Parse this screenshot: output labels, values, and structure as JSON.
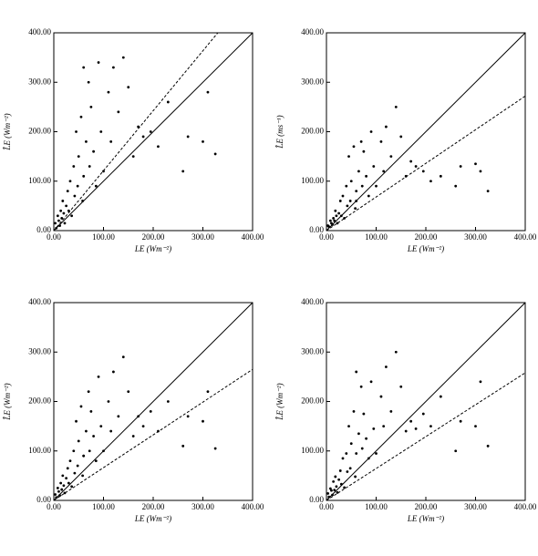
{
  "chart_data": [
    {
      "type": "scatter",
      "xlabel": "LE (Wm⁻²)",
      "ylabel": "L̂E (Wm⁻²)",
      "color": "#000000",
      "xlim": [
        0,
        400
      ],
      "ylim": [
        0,
        400
      ],
      "xticks": [
        {
          "value": 0,
          "label": "0.00"
        },
        {
          "value": 100,
          "label": "100.00"
        },
        {
          "value": 200,
          "label": "200.00"
        },
        {
          "value": 300,
          "label": "300.00"
        },
        {
          "value": 400,
          "label": "400.00"
        }
      ],
      "yticks": [
        {
          "value": 0,
          "label": "0.00"
        },
        {
          "value": 100,
          "label": "100.00"
        },
        {
          "value": 200,
          "label": "200.00"
        },
        {
          "value": 300,
          "label": "300.00"
        },
        {
          "value": 400,
          "label": "400.00"
        }
      ],
      "x": [
        3,
        5,
        8,
        10,
        12,
        14,
        16,
        18,
        20,
        22,
        25,
        28,
        30,
        33,
        36,
        40,
        42,
        45,
        48,
        50,
        55,
        58,
        60,
        65,
        70,
        72,
        75,
        80,
        85,
        90,
        95,
        100,
        110,
        115,
        120,
        130,
        140,
        150,
        160,
        170,
        180,
        195,
        210,
        230,
        260,
        270,
        300,
        310,
        325,
        60
      ],
      "values": [
        15,
        5,
        30,
        20,
        10,
        40,
        25,
        60,
        35,
        15,
        50,
        80,
        40,
        100,
        30,
        130,
        70,
        200,
        90,
        150,
        230,
        60,
        110,
        180,
        300,
        130,
        250,
        160,
        90,
        340,
        200,
        120,
        280,
        180,
        330,
        240,
        350,
        290,
        150,
        210,
        190,
        200,
        170,
        260,
        120,
        190,
        180,
        280,
        155,
        330
      ],
      "lines": [
        {
          "x": [
            0,
            400
          ],
          "values": [
            0,
            400
          ],
          "style": "solid"
        },
        {
          "x": [
            0,
            330
          ],
          "values": [
            0,
            400
          ],
          "style": "dashed"
        }
      ]
    },
    {
      "type": "scatter",
      "xlabel": "LE (Wm⁻²)",
      "ylabel": "L̂E (ms⁻¹)",
      "color": "#000000",
      "xlim": [
        0,
        400
      ],
      "ylim": [
        0,
        400
      ],
      "xticks": [
        {
          "value": 0,
          "label": "0.00"
        },
        {
          "value": 100,
          "label": "100.00"
        },
        {
          "value": 200,
          "label": "200.00"
        },
        {
          "value": 300,
          "label": "300.00"
        },
        {
          "value": 400,
          "label": "400.00"
        }
      ],
      "yticks": [
        {
          "value": 0,
          "label": "0.00"
        },
        {
          "value": 100,
          "label": "100.00"
        },
        {
          "value": 200,
          "label": "200.00"
        },
        {
          "value": 300,
          "label": "300.00"
        },
        {
          "value": 400,
          "label": "400.00"
        }
      ],
      "x": [
        3,
        5,
        8,
        10,
        12,
        14,
        16,
        18,
        20,
        22,
        25,
        28,
        30,
        33,
        36,
        40,
        42,
        45,
        48,
        50,
        55,
        58,
        60,
        65,
        70,
        72,
        75,
        80,
        85,
        90,
        95,
        100,
        110,
        115,
        120,
        130,
        140,
        150,
        160,
        170,
        180,
        195,
        210,
        230,
        260,
        270,
        300,
        310,
        325,
        60
      ],
      "values": [
        10,
        8,
        20,
        15,
        12,
        25,
        20,
        40,
        30,
        15,
        35,
        60,
        30,
        70,
        25,
        90,
        50,
        150,
        60,
        100,
        170,
        45,
        80,
        120,
        180,
        90,
        160,
        110,
        70,
        200,
        130,
        90,
        180,
        120,
        210,
        150,
        250,
        190,
        110,
        140,
        130,
        120,
        100,
        110,
        90,
        130,
        135,
        120,
        80,
        60
      ],
      "lines": [
        {
          "x": [
            0,
            400
          ],
          "values": [
            0,
            400
          ],
          "style": "solid"
        },
        {
          "x": [
            0,
            400
          ],
          "values": [
            0,
            272
          ],
          "style": "dashed"
        }
      ]
    },
    {
      "type": "scatter",
      "xlabel": "LE (Wm⁻²)",
      "ylabel": "L̂E (Wm⁻²)",
      "color": "#000000",
      "xlim": [
        0,
        400
      ],
      "ylim": [
        0,
        400
      ],
      "xticks": [
        {
          "value": 0,
          "label": "0.00"
        },
        {
          "value": 100,
          "label": "100.00"
        },
        {
          "value": 200,
          "label": "200.00"
        },
        {
          "value": 300,
          "label": "300.00"
        },
        {
          "value": 400,
          "label": "400.00"
        }
      ],
      "yticks": [
        {
          "value": 0,
          "label": "0.00"
        },
        {
          "value": 100,
          "label": "100.00"
        },
        {
          "value": 200,
          "label": "200.00"
        },
        {
          "value": 300,
          "label": "300.00"
        },
        {
          "value": 400,
          "label": "400.00"
        }
      ],
      "x": [
        3,
        5,
        8,
        10,
        12,
        14,
        16,
        18,
        20,
        22,
        25,
        28,
        30,
        33,
        36,
        40,
        42,
        45,
        48,
        50,
        55,
        58,
        60,
        65,
        70,
        72,
        75,
        80,
        85,
        90,
        95,
        100,
        110,
        115,
        120,
        130,
        140,
        150,
        160,
        170,
        180,
        195,
        210,
        230,
        260,
        270,
        300,
        310,
        325,
        60
      ],
      "values": [
        12,
        6,
        25,
        18,
        10,
        35,
        22,
        50,
        30,
        15,
        45,
        65,
        35,
        80,
        28,
        100,
        55,
        160,
        70,
        120,
        190,
        50,
        90,
        140,
        220,
        100,
        180,
        130,
        80,
        250,
        150,
        100,
        200,
        140,
        260,
        170,
        290,
        220,
        130,
        170,
        150,
        180,
        140,
        200,
        110,
        170,
        160,
        220,
        105,
        90
      ],
      "lines": [
        {
          "x": [
            0,
            400
          ],
          "values": [
            0,
            400
          ],
          "style": "solid"
        },
        {
          "x": [
            0,
            400
          ],
          "values": [
            0,
            265
          ],
          "style": "dashed"
        }
      ]
    },
    {
      "type": "scatter",
      "xlabel": "LE (Wm⁻²)",
      "ylabel": "L̂E (Wm⁻²)",
      "color": "#000000",
      "xlim": [
        0,
        400
      ],
      "ylim": [
        0,
        400
      ],
      "xticks": [
        {
          "value": 0,
          "label": "0.00"
        },
        {
          "value": 100,
          "label": "100.00"
        },
        {
          "value": 200,
          "label": "200.00"
        },
        {
          "value": 300,
          "label": "300.00"
        },
        {
          "value": 400,
          "label": "400.00"
        }
      ],
      "yticks": [
        {
          "value": 0,
          "label": "0.00"
        },
        {
          "value": 100,
          "label": "100.00"
        },
        {
          "value": 200,
          "label": "200.00"
        },
        {
          "value": 300,
          "label": "300.00"
        },
        {
          "value": 400,
          "label": "400.00"
        }
      ],
      "x": [
        3,
        5,
        8,
        10,
        12,
        14,
        16,
        18,
        20,
        22,
        25,
        28,
        30,
        33,
        36,
        40,
        42,
        45,
        48,
        50,
        55,
        58,
        60,
        65,
        70,
        72,
        75,
        80,
        85,
        90,
        95,
        100,
        110,
        115,
        120,
        130,
        140,
        150,
        160,
        170,
        180,
        195,
        210,
        230,
        260,
        270,
        300,
        310,
        325,
        60
      ],
      "values": [
        14,
        7,
        24,
        20,
        11,
        38,
        21,
        48,
        28,
        16,
        42,
        60,
        33,
        85,
        26,
        95,
        58,
        150,
        65,
        115,
        180,
        48,
        95,
        135,
        230,
        105,
        175,
        125,
        85,
        240,
        145,
        95,
        210,
        150,
        270,
        180,
        300,
        230,
        140,
        160,
        145,
        175,
        150,
        210,
        100,
        160,
        150,
        240,
        110,
        260
      ],
      "lines": [
        {
          "x": [
            0,
            400
          ],
          "values": [
            0,
            400
          ],
          "style": "solid"
        },
        {
          "x": [
            0,
            400
          ],
          "values": [
            0,
            258
          ],
          "style": "dashed"
        }
      ]
    }
  ]
}
